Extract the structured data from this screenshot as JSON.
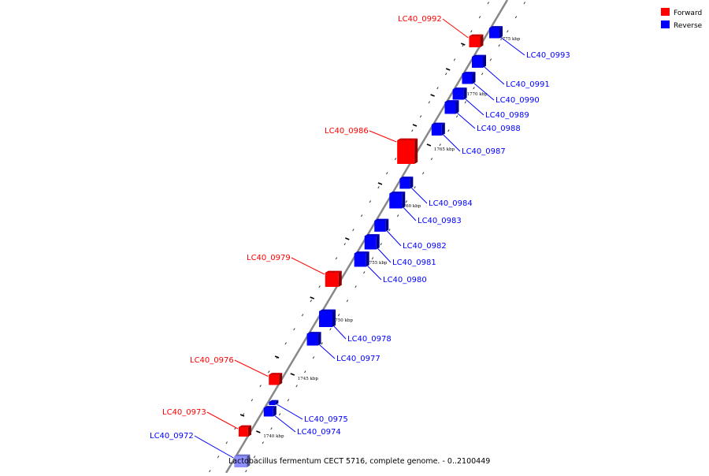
{
  "legend": [
    {
      "label": "Forward",
      "color": "#ff0000"
    },
    {
      "label": "Reverse",
      "color": "#0000ff"
    }
  ],
  "caption": "Lactobacillus fermentum CECT 5716, complete genome. - 0..2100449",
  "colors": {
    "forward": "#ff0000",
    "reverse": "#0000ff",
    "backbone": "#888888",
    "faded_reverse": "#8f8fff"
  },
  "scale": {
    "unit": "kbp",
    "ticks": [
      1740,
      1745,
      1750,
      1755,
      1760,
      1765,
      1770,
      1775
    ]
  },
  "tick_labels": [
    "1740 kbp",
    "1745 kbp",
    "1750 kbp",
    "1755 kbp",
    "1760 kbp",
    "1765 kbp",
    "1770 kbp",
    "1775 kbp"
  ],
  "genes": [
    {
      "name": "LC40_0972",
      "strand": "reverse",
      "faded": true
    },
    {
      "name": "LC40_0973",
      "strand": "forward"
    },
    {
      "name": "LC40_0974",
      "strand": "reverse"
    },
    {
      "name": "LC40_0975",
      "strand": "reverse"
    },
    {
      "name": "LC40_0976",
      "strand": "forward"
    },
    {
      "name": "LC40_0977",
      "strand": "reverse"
    },
    {
      "name": "LC40_0978",
      "strand": "reverse"
    },
    {
      "name": "LC40_0979",
      "strand": "forward"
    },
    {
      "name": "LC40_0980",
      "strand": "reverse"
    },
    {
      "name": "LC40_0981",
      "strand": "reverse"
    },
    {
      "name": "LC40_0982",
      "strand": "reverse"
    },
    {
      "name": "LC40_0983",
      "strand": "reverse"
    },
    {
      "name": "LC40_0984",
      "strand": "reverse"
    },
    {
      "name": "LC40_0986",
      "strand": "forward"
    },
    {
      "name": "LC40_0987",
      "strand": "reverse"
    },
    {
      "name": "LC40_0988",
      "strand": "reverse"
    },
    {
      "name": "LC40_0989",
      "strand": "reverse"
    },
    {
      "name": "LC40_0990",
      "strand": "reverse"
    },
    {
      "name": "LC40_0991",
      "strand": "reverse"
    },
    {
      "name": "LC40_0992",
      "strand": "forward"
    },
    {
      "name": "LC40_0993",
      "strand": "reverse"
    }
  ]
}
